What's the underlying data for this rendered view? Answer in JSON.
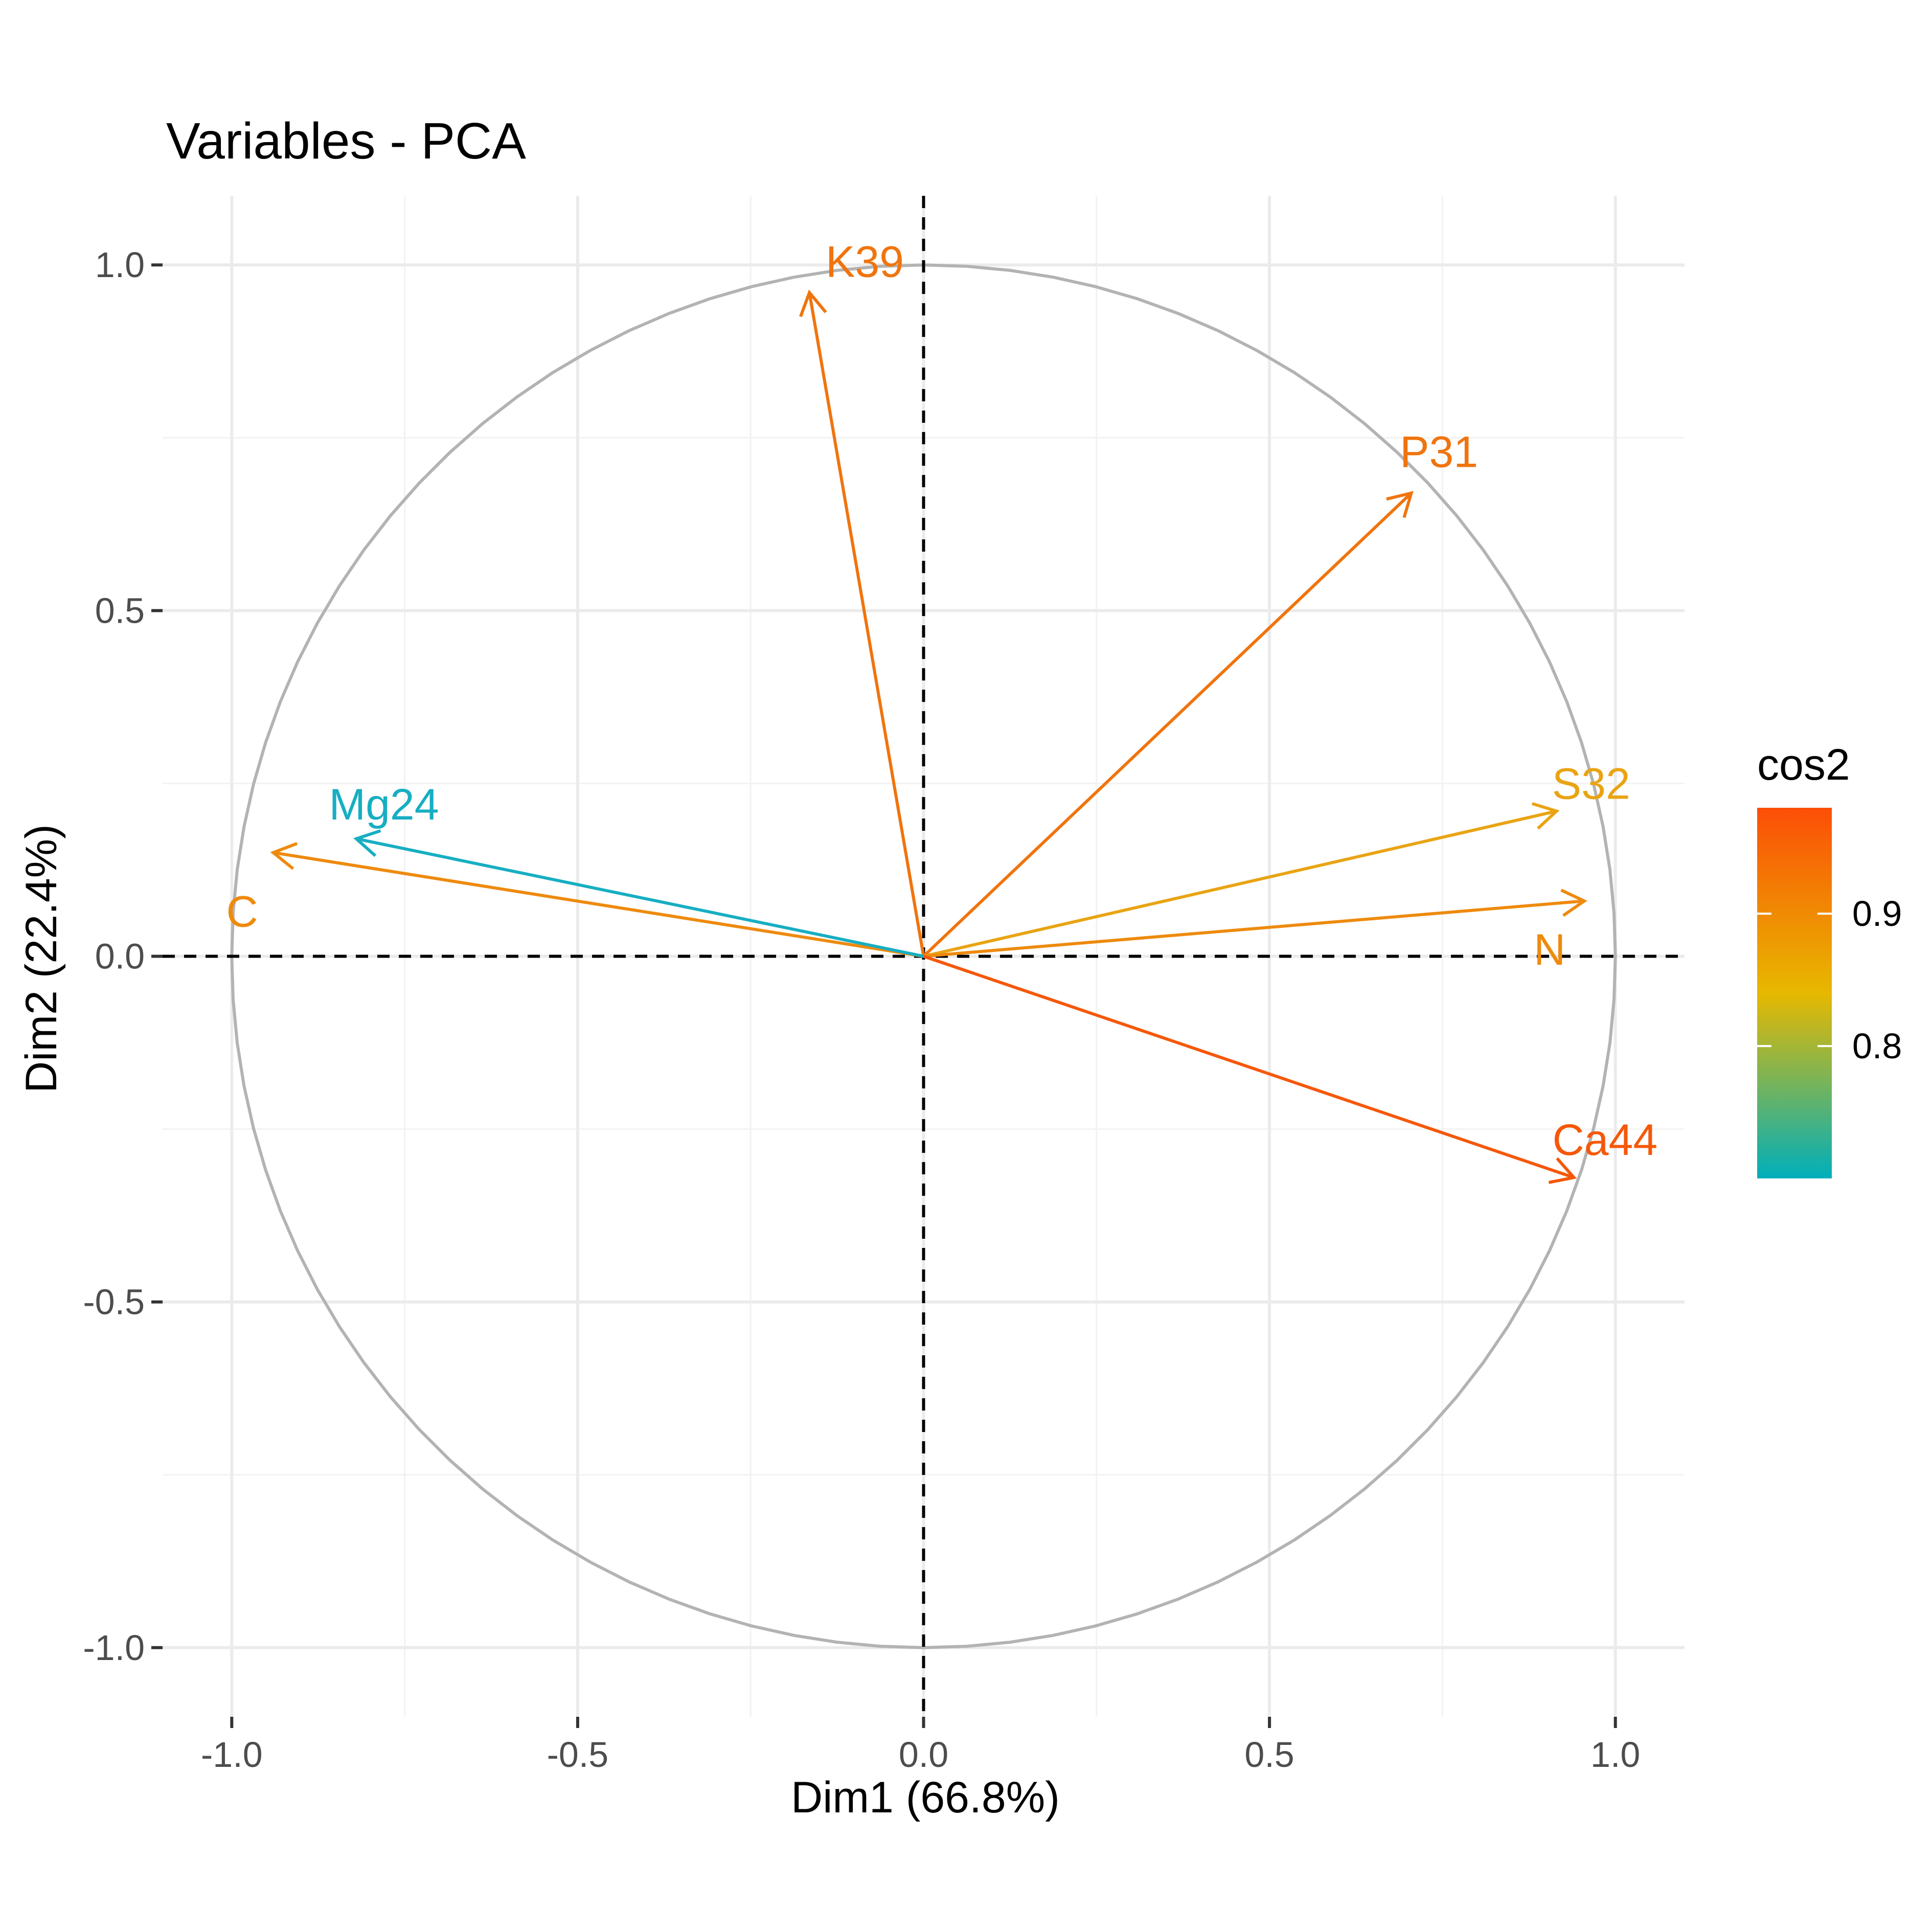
{
  "chart_data": {
    "type": "scatter",
    "title": "Variables - PCA",
    "xlabel": "Dim1 (66.8%)",
    "ylabel": "Dim2 (22.4%)",
    "xlim": [
      -1.1,
      1.1
    ],
    "ylim": [
      -1.1,
      1.1
    ],
    "grid": true,
    "x_ticks": [
      -1.0,
      -0.5,
      0.0,
      0.5,
      1.0
    ],
    "x_tick_labels": [
      "-1.0",
      "-0.5",
      "0.0",
      "0.5",
      "1.0"
    ],
    "y_ticks": [
      -1.0,
      -0.5,
      0.0,
      0.5,
      1.0
    ],
    "y_tick_labels": [
      "-1.0",
      "-0.5",
      "0.0",
      "0.5",
      "1.0"
    ],
    "correlation_circle": true,
    "reference_lines": {
      "x": 0,
      "y": 0,
      "style": "dashed"
    },
    "variables": [
      {
        "name": "K39",
        "x": -0.165,
        "y": 0.96,
        "cos2": 0.95,
        "color": "#F0740E"
      },
      {
        "name": "P31",
        "x": 0.705,
        "y": 0.67,
        "cos2": 0.95,
        "color": "#F0740E"
      },
      {
        "name": "S32",
        "x": 0.915,
        "y": 0.21,
        "cos2": 0.88,
        "color": "#E9A413"
      },
      {
        "name": "N",
        "x": 0.955,
        "y": 0.08,
        "cos2": 0.91,
        "color": "#EE8A0D"
      },
      {
        "name": "Ca44",
        "x": 0.94,
        "y": -0.32,
        "cos2": 0.98,
        "color": "#F5580A"
      },
      {
        "name": "C",
        "x": -0.94,
        "y": 0.15,
        "cos2": 0.91,
        "color": "#EE8A0D"
      },
      {
        "name": "Mg24",
        "x": -0.82,
        "y": 0.17,
        "cos2": 0.7,
        "color": "#17AEC2"
      }
    ],
    "legend": {
      "title": "cos2",
      "position": "right",
      "range": [
        0.7,
        0.98
      ],
      "tick_values": [
        0.8,
        0.9
      ],
      "tick_labels": [
        "0.8",
        "0.9"
      ],
      "gradient": [
        "#00AFBB",
        "#E7B800",
        "#FC4E07"
      ]
    }
  }
}
